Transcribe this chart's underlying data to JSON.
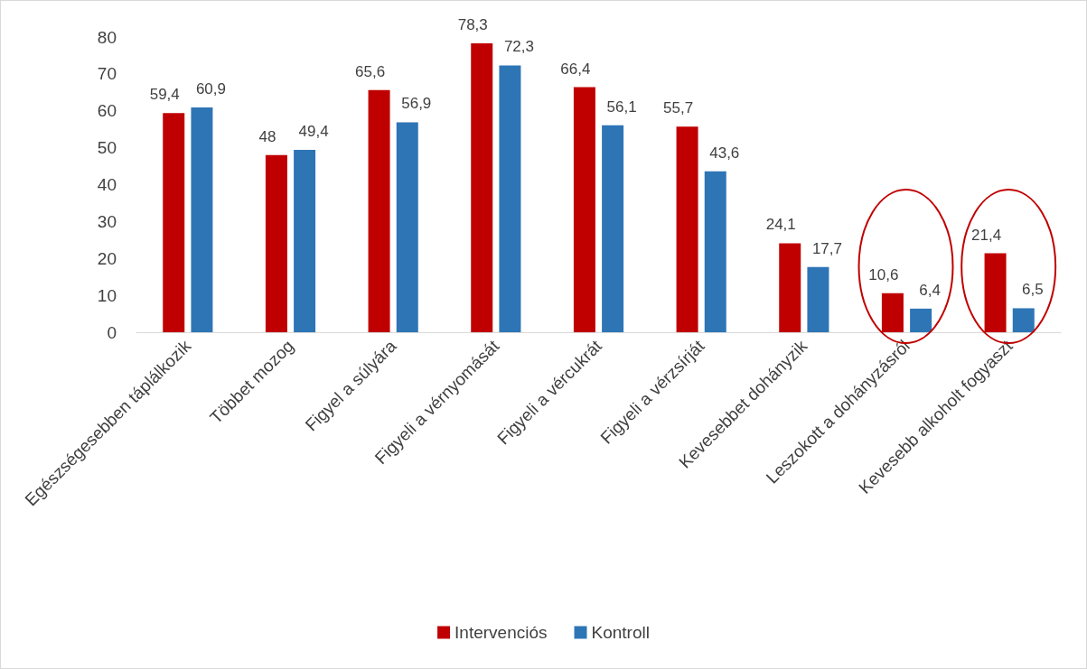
{
  "chart_data": {
    "type": "bar",
    "categories": [
      "Egészségesebben táplálkozik",
      "Többet mozog",
      "Figyel a súlyára",
      "Figyeli a vérnyomását",
      "Figyeli a vércukrát",
      "Figyeli a vérzsírját",
      "Kevesebbet dohányzik",
      "Leszokott a dohányzásról",
      "Kevesebb alkoholt fogyaszt"
    ],
    "series": [
      {
        "name": "Intervenciós",
        "color": "#c00000",
        "values": [
          59.4,
          48,
          65.6,
          78.3,
          66.4,
          55.7,
          24.1,
          10.6,
          21.4
        ],
        "value_labels": [
          "59,4",
          "48",
          "65,6",
          "78,3",
          "66,4",
          "55,7",
          "24,1",
          "10,6",
          "21,4"
        ]
      },
      {
        "name": "Kontroll",
        "color": "#2e75b6",
        "values": [
          60.9,
          49.4,
          56.9,
          72.3,
          56.1,
          43.6,
          17.7,
          6.4,
          6.5
        ],
        "value_labels": [
          "60,9",
          "49,4",
          "56,9",
          "72,3",
          "56,1",
          "43,6",
          "17,7",
          "6,4",
          "6,5"
        ]
      }
    ],
    "ylim": [
      0,
      80
    ],
    "yticks": [
      0,
      10,
      20,
      30,
      40,
      50,
      60,
      70,
      80
    ],
    "grid": false,
    "legend": "bottom"
  }
}
